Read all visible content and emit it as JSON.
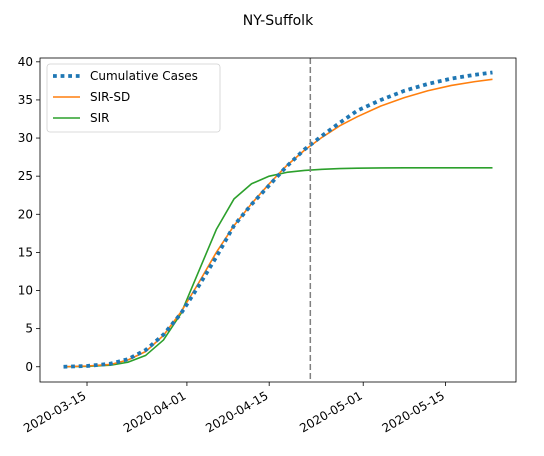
{
  "chart_data": {
    "type": "line",
    "title": "NY-Suffolk",
    "xlabel": "",
    "ylabel": "",
    "x_axis": "date",
    "xlim": [
      "2020-03-07",
      "2020-05-27"
    ],
    "ylim": [
      -2,
      40.5
    ],
    "x_ticks": [
      "2020-03-15",
      "2020-04-01",
      "2020-04-15",
      "2020-05-01",
      "2020-05-15"
    ],
    "y_ticks": [
      0,
      5,
      10,
      15,
      20,
      25,
      30,
      35,
      40
    ],
    "grid": false,
    "legend": "upper left",
    "vline": {
      "x": "2020-04-22",
      "style": "dashed",
      "color": "#808080"
    },
    "series": [
      {
        "name": "Cumulative Cases",
        "style": "dotted",
        "color": "#1f77b4",
        "x": [
          "2020-03-11",
          "2020-03-15",
          "2020-03-19",
          "2020-03-22",
          "2020-03-25",
          "2020-03-28",
          "2020-03-31",
          "2020-04-03",
          "2020-04-06",
          "2020-04-09",
          "2020-04-12",
          "2020-04-15",
          "2020-04-18",
          "2020-04-21",
          "2020-04-24",
          "2020-04-27",
          "2020-04-30",
          "2020-05-04",
          "2020-05-08",
          "2020-05-12",
          "2020-05-16",
          "2020-05-20",
          "2020-05-23"
        ],
        "values": [
          0,
          0.1,
          0.4,
          1.0,
          2.2,
          4.2,
          7.0,
          10.6,
          14.4,
          18.5,
          21.3,
          23.8,
          26.3,
          28.5,
          30.3,
          32.0,
          33.6,
          35.0,
          36.2,
          37.1,
          37.8,
          38.3,
          38.6
        ]
      },
      {
        "name": "SIR-SD",
        "style": "solid",
        "color": "#ff7f0e",
        "x": [
          "2020-03-11",
          "2020-03-15",
          "2020-03-19",
          "2020-03-22",
          "2020-03-25",
          "2020-03-28",
          "2020-03-31",
          "2020-04-03",
          "2020-04-06",
          "2020-04-09",
          "2020-04-12",
          "2020-04-15",
          "2020-04-18",
          "2020-04-21",
          "2020-04-24",
          "2020-04-27",
          "2020-04-30",
          "2020-05-04",
          "2020-05-08",
          "2020-05-12",
          "2020-05-16",
          "2020-05-20",
          "2020-05-23"
        ],
        "values": [
          0,
          0.1,
          0.3,
          0.9,
          2.0,
          4.1,
          7.2,
          11.0,
          15.0,
          18.5,
          21.4,
          24.0,
          26.4,
          28.4,
          30.1,
          31.6,
          32.8,
          34.2,
          35.3,
          36.2,
          36.9,
          37.4,
          37.7
        ]
      },
      {
        "name": "SIR",
        "style": "solid",
        "color": "#2ca02c",
        "x": [
          "2020-03-11",
          "2020-03-15",
          "2020-03-19",
          "2020-03-22",
          "2020-03-25",
          "2020-03-28",
          "2020-03-31",
          "2020-04-03",
          "2020-04-06",
          "2020-04-09",
          "2020-04-12",
          "2020-04-15",
          "2020-04-18",
          "2020-04-21",
          "2020-04-24",
          "2020-04-27",
          "2020-04-30",
          "2020-05-04",
          "2020-05-08",
          "2020-05-12",
          "2020-05-16",
          "2020-05-20",
          "2020-05-23"
        ],
        "values": [
          0,
          0.05,
          0.2,
          0.6,
          1.5,
          3.5,
          7.0,
          12.5,
          18.0,
          22.0,
          24.0,
          25.0,
          25.5,
          25.75,
          25.9,
          26.0,
          26.05,
          26.08,
          26.1,
          26.1,
          26.1,
          26.1,
          26.1
        ]
      }
    ]
  }
}
